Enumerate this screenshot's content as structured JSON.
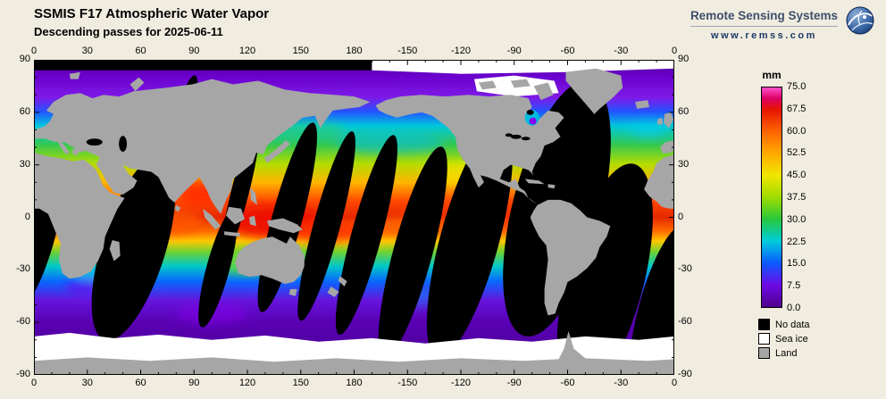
{
  "header": {
    "title": "SSMIS F17 Atmospheric Water Vapor",
    "subtitle": "Descending passes for 2025-06-11"
  },
  "branding": {
    "name": "Remote Sensing Systems",
    "url": "www.remss.com"
  },
  "map": {
    "lon_ticks": [
      "0",
      "30",
      "60",
      "90",
      "120",
      "150",
      "180",
      "-150",
      "-120",
      "-90",
      "-60",
      "-30",
      "0"
    ],
    "lat_ticks": [
      "90",
      "60",
      "30",
      "0",
      "-30",
      "-60",
      "-90"
    ]
  },
  "colorbar": {
    "unit": "mm",
    "min": 0.0,
    "max": 75.0,
    "ticks": [
      "75.0",
      "67.5",
      "60.0",
      "52.5",
      "45.0",
      "37.5",
      "30.0",
      "22.5",
      "15.0",
      "7.5",
      "0.0"
    ],
    "scale": [
      {
        "offset": "0%",
        "color": "#ff50cc"
      },
      {
        "offset": "5%",
        "color": "#dc0064"
      },
      {
        "offset": "10%",
        "color": "#e61400"
      },
      {
        "offset": "20%",
        "color": "#ff6400"
      },
      {
        "offset": "30%",
        "color": "#ffaa00"
      },
      {
        "offset": "40%",
        "color": "#f0e600"
      },
      {
        "offset": "50%",
        "color": "#a0dc00"
      },
      {
        "offset": "60%",
        "color": "#28c83c"
      },
      {
        "offset": "70%",
        "color": "#00ccdc"
      },
      {
        "offset": "80%",
        "color": "#0a5aff"
      },
      {
        "offset": "90%",
        "color": "#6e0ae6"
      },
      {
        "offset": "100%",
        "color": "#50008c"
      }
    ]
  },
  "legend": [
    {
      "label": "No data",
      "color": "#000000"
    },
    {
      "label": "Sea ice",
      "color": "#ffffff"
    },
    {
      "label": "Land",
      "color": "#a6a6a6"
    }
  ],
  "colors": {
    "background": "#f1ece0",
    "land": "#a6a6a6",
    "sea_ice": "#ffffff",
    "no_data": "#000000"
  }
}
